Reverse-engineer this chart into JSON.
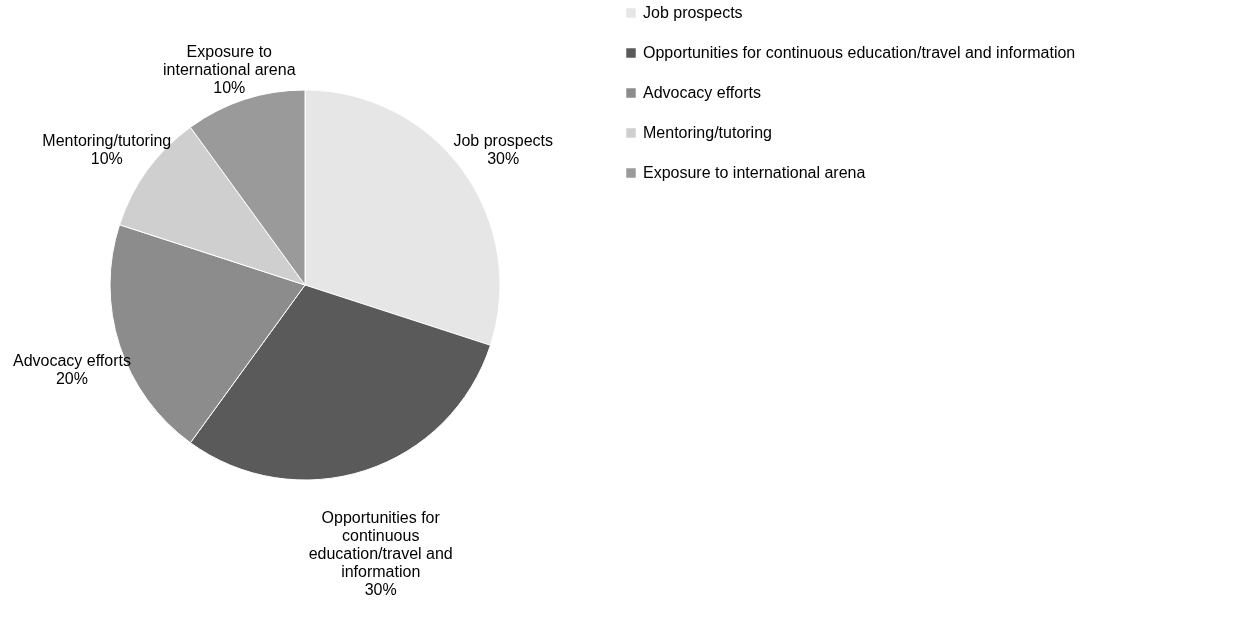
{
  "chart_data": {
    "type": "pie",
    "categories": [
      "Job prospects",
      "Opportunities for continuous education/travel and information",
      "Advocacy efforts",
      "Mentoring/tutoring",
      "Exposure to international arena"
    ],
    "values": [
      30,
      30,
      20,
      10,
      10
    ],
    "value_labels": [
      "30%",
      "30%",
      "20%",
      "10%",
      "10%"
    ],
    "colors": [
      "#e6e6e6",
      "#5a5a5a",
      "#8c8c8c",
      "#cfcfcf",
      "#9a9a9a"
    ],
    "legend": "right"
  }
}
